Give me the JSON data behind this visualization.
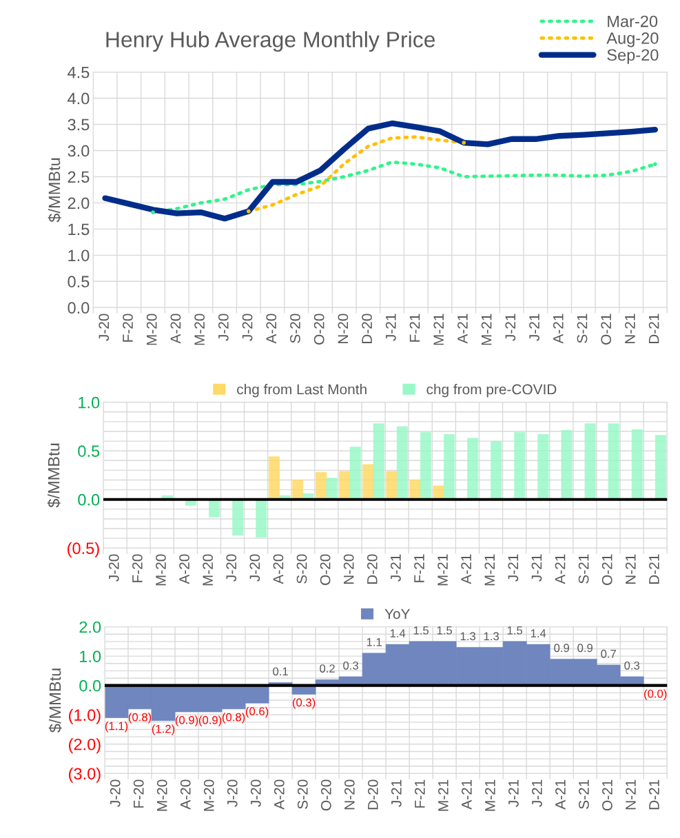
{
  "chart_data": [
    {
      "type": "line",
      "title": "Henry Hub Average Monthly Price",
      "ylabel": "$/MMBtu",
      "categories": [
        "J-20",
        "F-20",
        "M-20",
        "A-20",
        "M-20",
        "J-20",
        "J-20",
        "A-20",
        "S-20",
        "O-20",
        "N-20",
        "D-20",
        "J-21",
        "F-21",
        "M-21",
        "A-21",
        "M-21",
        "J-21",
        "J-21",
        "A-21",
        "S-21",
        "O-21",
        "N-21",
        "D-21"
      ],
      "series": [
        {
          "name": "Mar-20",
          "color": "#2EF58A",
          "line_style": "dotted",
          "values": [
            null,
            null,
            1.82,
            1.89,
            2.0,
            2.07,
            2.25,
            2.35,
            2.35,
            2.41,
            2.5,
            2.62,
            2.78,
            2.74,
            2.67,
            2.5,
            2.51,
            2.52,
            2.53,
            2.53,
            2.51,
            2.53,
            2.6,
            2.74
          ]
        },
        {
          "name": "Aug-20",
          "color": "#FFC000",
          "line_style": "dotted",
          "values": [
            null,
            null,
            null,
            null,
            null,
            null,
            1.84,
            1.96,
            2.16,
            2.32,
            2.75,
            3.08,
            3.24,
            3.26,
            3.2,
            3.15,
            null,
            null,
            null,
            null,
            null,
            null,
            null,
            null
          ]
        },
        {
          "name": "Sep-20",
          "color": "#002D8A",
          "line_style": "solid",
          "values": [
            2.09,
            1.98,
            1.87,
            1.8,
            1.82,
            1.7,
            1.84,
            2.4,
            2.4,
            2.62,
            3.03,
            3.42,
            3.52,
            3.45,
            3.37,
            3.15,
            3.12,
            3.22,
            3.22,
            3.28,
            3.3,
            3.33,
            3.36,
            3.4
          ]
        }
      ],
      "ylim": [
        0,
        4.5
      ],
      "yticks": [
        {
          "value": 0,
          "label": "0.0"
        },
        {
          "value": 0.5,
          "label": "0.5"
        },
        {
          "value": 1,
          "label": "1.0"
        },
        {
          "value": 1.5,
          "label": "1.5"
        },
        {
          "value": 2,
          "label": "2.0"
        },
        {
          "value": 2.5,
          "label": "2.5"
        },
        {
          "value": 3,
          "label": "3.0"
        },
        {
          "value": 3.5,
          "label": "3.5"
        },
        {
          "value": 4,
          "label": "4.0"
        },
        {
          "value": 4.5,
          "label": "4.5"
        }
      ],
      "grid": true,
      "legend": "top right",
      "marker": "none"
    },
    {
      "type": "bar",
      "ylabel": "$/MMBtu",
      "categories": [
        "J-20",
        "F-20",
        "M-20",
        "A-20",
        "M-20",
        "J-20",
        "J-20",
        "A-20",
        "S-20",
        "O-20",
        "N-20",
        "D-20",
        "J-21",
        "F-21",
        "M-21",
        "A-21",
        "M-21",
        "J-21",
        "J-21",
        "A-21",
        "S-21",
        "O-21",
        "N-21",
        "D-21"
      ],
      "series": [
        {
          "name": "chg from Last Month",
          "color": "#FFD966",
          "values": [
            null,
            null,
            null,
            null,
            null,
            null,
            null,
            0.44,
            0.2,
            0.28,
            0.29,
            0.36,
            0.29,
            0.2,
            0.14,
            null,
            null,
            null,
            null,
            null,
            null,
            null,
            null,
            null
          ]
        },
        {
          "name": "chg from pre-COVID",
          "color": "#99F8C8",
          "values": [
            0,
            0,
            0.04,
            -0.06,
            -0.18,
            -0.37,
            -0.39,
            0.04,
            0.06,
            0.22,
            0.54,
            0.78,
            0.75,
            0.69,
            0.67,
            0.63,
            0.6,
            0.69,
            0.67,
            0.71,
            0.78,
            0.78,
            0.72,
            0.66
          ]
        }
      ],
      "ylim": [
        -0.5,
        1.0
      ],
      "yticks": [
        {
          "value": -0.5,
          "label": "(0.5)"
        },
        {
          "value": -0.4,
          "label": null
        },
        {
          "value": -0.3,
          "label": null
        },
        {
          "value": -0.2,
          "label": null
        },
        {
          "value": -0.1,
          "label": null
        },
        {
          "value": 0,
          "label": "0.0"
        },
        {
          "value": 0.1,
          "label": null
        },
        {
          "value": 0.2,
          "label": null
        },
        {
          "value": 0.3,
          "label": null
        },
        {
          "value": 0.4,
          "label": null
        },
        {
          "value": 0.5,
          "label": "0.5"
        },
        {
          "value": 0.6,
          "label": null
        },
        {
          "value": 0.7,
          "label": null
        },
        {
          "value": 0.8,
          "label": null
        },
        {
          "value": 0.9,
          "label": null
        },
        {
          "value": 1,
          "label": "1.0"
        }
      ],
      "ref_lines": [
        {
          "axis": "y",
          "value": 0,
          "color": "#000000"
        }
      ],
      "grid": true,
      "legend": "top"
    },
    {
      "type": "bar",
      "ylabel": "$/MMBtu",
      "categories": [
        "J-20",
        "F-20",
        "M-20",
        "A-20",
        "M-20",
        "J-20",
        "J-20",
        "A-20",
        "S-20",
        "O-20",
        "N-20",
        "D-20",
        "J-21",
        "F-21",
        "M-21",
        "A-21",
        "M-21",
        "J-21",
        "J-21",
        "A-21",
        "S-21",
        "O-21",
        "N-21",
        "D-21"
      ],
      "series": [
        {
          "name": "YoY",
          "color": "#6F86BF",
          "values": [
            -1.1,
            -0.8,
            -1.2,
            -0.9,
            -0.9,
            -0.8,
            -0.6,
            0.1,
            -0.3,
            0.2,
            0.3,
            1.1,
            1.4,
            1.5,
            1.5,
            1.3,
            1.3,
            1.5,
            1.4,
            0.9,
            0.9,
            0.7,
            0.3,
            -0.0
          ],
          "value_labels": [
            "(1.1)",
            "(0.8)",
            "(1.2)",
            "(0.9)",
            "(0.9)",
            "(0.8)",
            "(0.6)",
            "0.1",
            "(0.3)",
            "0.2",
            "0.3",
            "1.1",
            "1.4",
            "1.5",
            "1.5",
            "1.3",
            "1.3",
            "1.5",
            "1.4",
            "0.9",
            "0.9",
            "0.7",
            "0.3",
            "(0.0)"
          ]
        }
      ],
      "ylim": [
        -3.0,
        2.0
      ],
      "yticks": [
        {
          "value": -3,
          "label": "(3.0)"
        },
        {
          "value": -2.75,
          "label": null
        },
        {
          "value": -2.5,
          "label": null
        },
        {
          "value": -2.25,
          "label": null
        },
        {
          "value": -2,
          "label": "(2.0)"
        },
        {
          "value": -1.75,
          "label": null
        },
        {
          "value": -1.5,
          "label": null
        },
        {
          "value": -1.25,
          "label": null
        },
        {
          "value": -1,
          "label": "(1.0)"
        },
        {
          "value": -0.75,
          "label": null
        },
        {
          "value": -0.5,
          "label": null
        },
        {
          "value": -0.25,
          "label": null
        },
        {
          "value": 0,
          "label": "0.0"
        },
        {
          "value": 0.25,
          "label": null
        },
        {
          "value": 0.5,
          "label": null
        },
        {
          "value": 0.75,
          "label": null
        },
        {
          "value": 1,
          "label": "1.0"
        },
        {
          "value": 1.25,
          "label": null
        },
        {
          "value": 1.5,
          "label": null
        },
        {
          "value": 1.75,
          "label": null
        },
        {
          "value": 2,
          "label": "2.0"
        }
      ],
      "ref_lines": [
        {
          "axis": "y",
          "value": 0,
          "color": "#000000"
        }
      ],
      "grid": true,
      "legend": "top"
    }
  ]
}
